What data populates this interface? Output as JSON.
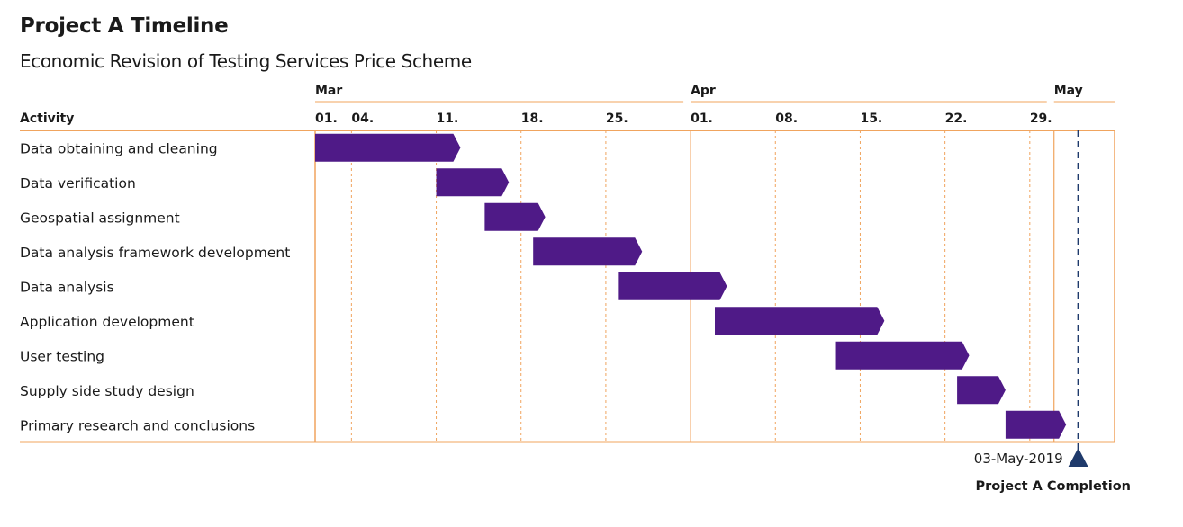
{
  "header": {
    "title": "Project A Timeline",
    "subtitle": "Economic Revision of Testing Services Price Scheme"
  },
  "colors": {
    "bar": "#4f1a87",
    "grid": "#f0a45e",
    "milestone": "#1f3a6b"
  },
  "chart_data": {
    "type": "gantt",
    "activity_header": "Activity",
    "months": [
      {
        "label": "Mar",
        "date": "2019-03-01"
      },
      {
        "label": "Apr",
        "date": "2019-04-01"
      },
      {
        "label": "May",
        "date": "2019-05-01"
      }
    ],
    "ticks": [
      {
        "label": "01.",
        "date": "2019-03-01"
      },
      {
        "label": "04.",
        "date": "2019-03-04"
      },
      {
        "label": "11.",
        "date": "2019-03-11"
      },
      {
        "label": "18.",
        "date": "2019-03-18"
      },
      {
        "label": "25.",
        "date": "2019-03-25"
      },
      {
        "label": "01.",
        "date": "2019-04-01"
      },
      {
        "label": "08.",
        "date": "2019-04-08"
      },
      {
        "label": "15.",
        "date": "2019-04-15"
      },
      {
        "label": "22.",
        "date": "2019-04-22"
      },
      {
        "label": "29.",
        "date": "2019-04-29"
      }
    ],
    "x_range": [
      "2019-03-01",
      "2019-05-06"
    ],
    "tasks": [
      {
        "name": "Data obtaining and cleaning",
        "start": "2019-03-01",
        "end": "2019-03-13"
      },
      {
        "name": "Data verification",
        "start": "2019-03-11",
        "end": "2019-03-17"
      },
      {
        "name": "Geospatial assignment",
        "start": "2019-03-15",
        "end": "2019-03-20"
      },
      {
        "name": "Data analysis framework development",
        "start": "2019-03-19",
        "end": "2019-03-28"
      },
      {
        "name": "Data analysis",
        "start": "2019-03-26",
        "end": "2019-04-04"
      },
      {
        "name": "Application development",
        "start": "2019-04-03",
        "end": "2019-04-17"
      },
      {
        "name": "User testing",
        "start": "2019-04-13",
        "end": "2019-04-24"
      },
      {
        "name": "Supply side study design",
        "start": "2019-04-23",
        "end": "2019-04-27"
      },
      {
        "name": "Primary research and conclusions",
        "start": "2019-04-27",
        "end": "2019-05-02"
      }
    ],
    "milestone": {
      "date": "2019-05-03",
      "date_label": "03-May-2019",
      "label": "Project A Completion"
    }
  }
}
